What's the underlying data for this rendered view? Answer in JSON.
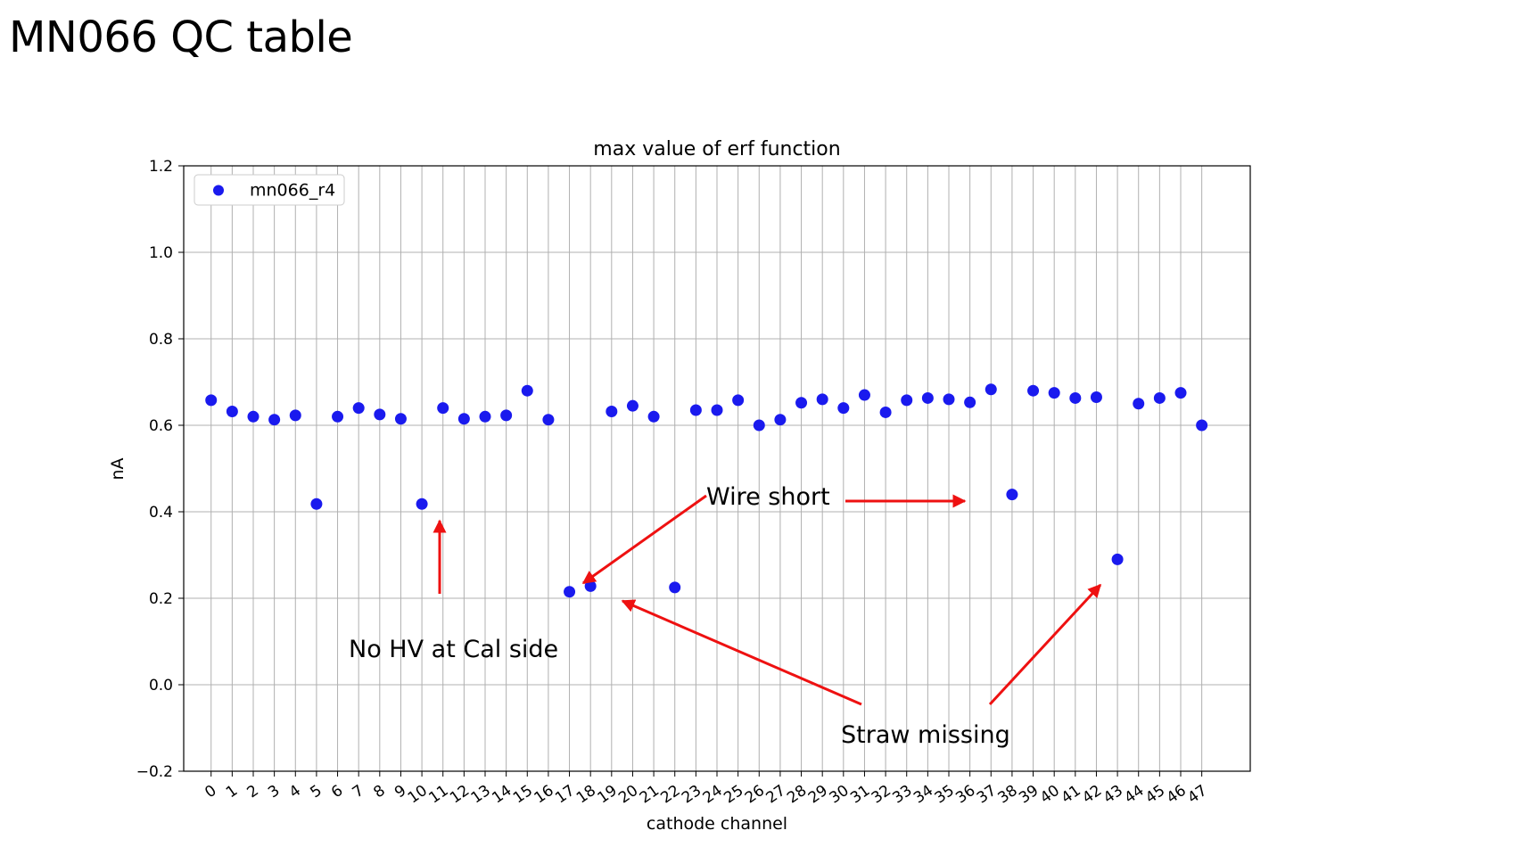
{
  "slide": {
    "title": "MN066 QC table"
  },
  "colors": {
    "points": "#1a1aee",
    "arrows": "#ee1111",
    "grid": "#b0b0b0"
  },
  "chart_data": {
    "type": "scatter",
    "title": "max value of erf function",
    "xlabel": "cathode channel",
    "ylabel": "nA",
    "ylim": [
      -0.2,
      1.2
    ],
    "yticks": [
      -0.2,
      0.0,
      0.2,
      0.4,
      0.6,
      0.8,
      1.0,
      1.2
    ],
    "ytick_labels": [
      "−0.2",
      "0.0",
      "0.2",
      "0.4",
      "0.6",
      "0.8",
      "1.0",
      "1.2"
    ],
    "xticks": [
      0,
      1,
      2,
      3,
      4,
      5,
      6,
      7,
      8,
      9,
      10,
      11,
      12,
      13,
      14,
      15,
      16,
      17,
      18,
      19,
      20,
      21,
      22,
      23,
      24,
      25,
      26,
      27,
      28,
      29,
      30,
      31,
      32,
      33,
      34,
      35,
      36,
      37,
      38,
      39,
      40,
      41,
      42,
      43,
      44,
      45,
      46,
      47
    ],
    "grid": true,
    "legend_position": "top-left",
    "series": [
      {
        "name": "mn066_r4",
        "x": [
          0,
          1,
          2,
          3,
          4,
          5,
          6,
          7,
          8,
          9,
          10,
          11,
          12,
          13,
          14,
          15,
          16,
          17,
          18,
          19,
          20,
          21,
          22,
          23,
          24,
          25,
          26,
          27,
          28,
          29,
          30,
          31,
          32,
          33,
          34,
          35,
          36,
          37,
          38,
          39,
          40,
          41,
          42,
          43,
          44,
          45,
          46,
          47
        ],
        "y": [
          0.658,
          0.632,
          0.62,
          0.613,
          0.623,
          0.418,
          0.62,
          0.64,
          0.625,
          0.615,
          0.418,
          0.64,
          0.615,
          0.62,
          0.623,
          0.68,
          0.613,
          0.215,
          0.228,
          0.632,
          0.645,
          0.62,
          0.225,
          0.635,
          0.635,
          0.658,
          0.6,
          0.613,
          0.652,
          0.66,
          0.64,
          0.67,
          0.63,
          0.658,
          0.663,
          0.66,
          0.653,
          0.683,
          0.44,
          0.68,
          0.675,
          0.663,
          0.665,
          0.29,
          0.65,
          0.663,
          0.675,
          0.6
        ]
      }
    ],
    "annotations": [
      {
        "text": "Wire short"
      },
      {
        "text": "No HV at Cal side"
      },
      {
        "text": "Straw missing"
      }
    ]
  }
}
